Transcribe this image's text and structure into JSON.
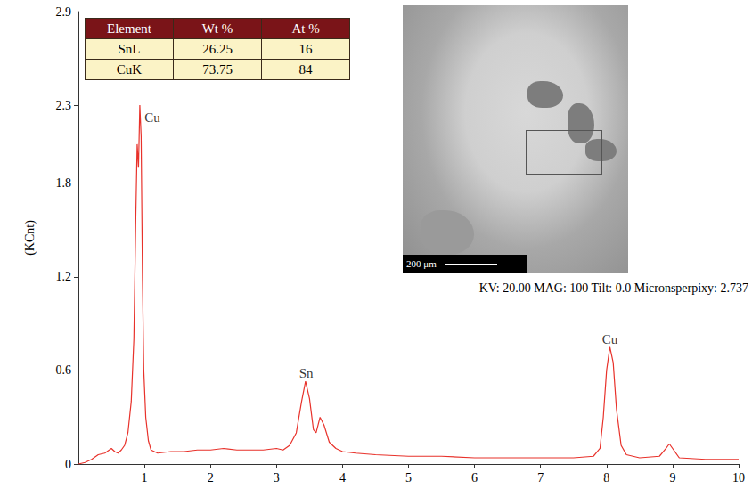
{
  "chart_data": {
    "type": "line",
    "color": "#e8322b",
    "ylabel": "(KCnt)",
    "grid": false,
    "xlim": [
      0,
      10
    ],
    "xticks": [
      1,
      2,
      3,
      4,
      5,
      6,
      7,
      8,
      9,
      10
    ],
    "ylim": [
      0,
      2.9
    ],
    "yticks": [
      0,
      0.6,
      1.2,
      1.8,
      2.3,
      2.9
    ],
    "x": [
      0,
      0.1,
      0.2,
      0.3,
      0.4,
      0.5,
      0.55,
      0.6,
      0.65,
      0.7,
      0.75,
      0.8,
      0.84,
      0.87,
      0.89,
      0.91,
      0.93,
      0.95,
      0.97,
      0.99,
      1.02,
      1.06,
      1.1,
      1.2,
      1.4,
      1.6,
      1.8,
      2.0,
      2.2,
      2.4,
      2.6,
      2.8,
      3.0,
      3.1,
      3.2,
      3.3,
      3.38,
      3.44,
      3.5,
      3.56,
      3.6,
      3.66,
      3.72,
      3.8,
      3.9,
      4.0,
      4.2,
      4.5,
      5.0,
      5.5,
      6.0,
      6.5,
      7.0,
      7.5,
      7.8,
      7.9,
      7.95,
      8.0,
      8.05,
      8.1,
      8.15,
      8.22,
      8.3,
      8.5,
      8.8,
      8.9,
      8.95,
      9.0,
      9.1,
      9.5,
      10.0
    ],
    "values": [
      0,
      0.01,
      0.03,
      0.06,
      0.07,
      0.1,
      0.08,
      0.07,
      0.09,
      0.12,
      0.2,
      0.4,
      0.8,
      1.6,
      2.05,
      1.9,
      2.3,
      2.1,
      1.2,
      0.6,
      0.3,
      0.15,
      0.09,
      0.07,
      0.08,
      0.08,
      0.09,
      0.09,
      0.1,
      0.09,
      0.09,
      0.09,
      0.1,
      0.09,
      0.12,
      0.2,
      0.4,
      0.53,
      0.42,
      0.22,
      0.2,
      0.3,
      0.25,
      0.14,
      0.1,
      0.08,
      0.07,
      0.06,
      0.05,
      0.05,
      0.04,
      0.04,
      0.04,
      0.04,
      0.05,
      0.1,
      0.3,
      0.6,
      0.75,
      0.65,
      0.35,
      0.12,
      0.06,
      0.04,
      0.05,
      0.1,
      0.13,
      0.1,
      0.04,
      0.03,
      0.03
    ],
    "annotations": [
      {
        "text": "Cu",
        "x": 1.12,
        "y": 2.22
      },
      {
        "text": "Sn",
        "x": 3.45,
        "y": 0.58
      },
      {
        "text": "Cu",
        "x": 8.05,
        "y": 0.8
      }
    ],
    "table": {
      "columns": [
        "Element",
        "Wt %",
        "At %"
      ],
      "rows": [
        [
          "SnL",
          26.25,
          16
        ],
        [
          "CuK",
          73.75,
          84
        ]
      ]
    },
    "image": {
      "scale_bar": "200 μm",
      "caption": "KV: 20.00 MAG: 100 Tilt: 0.0 Micronsperpixy: 2.737"
    }
  }
}
